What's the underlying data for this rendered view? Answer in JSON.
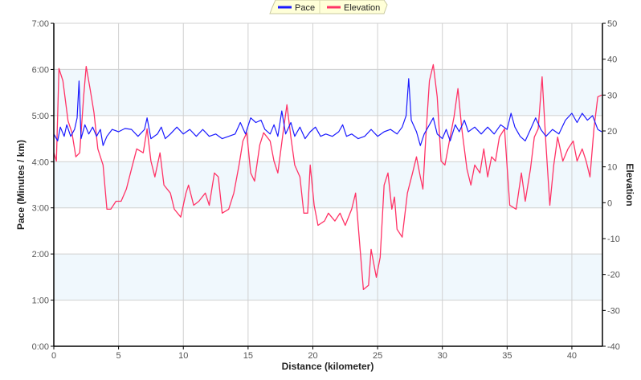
{
  "chart_data": {
    "type": "line",
    "legend": {
      "placement": "top-center",
      "items": [
        "Pace",
        "Elevation"
      ]
    },
    "xlabel": "Distance (kilometer)",
    "ylabel_left": "Pace (Minutes / km)",
    "ylabel_right": "Elevation",
    "xlim": [
      0,
      42.36
    ],
    "ylim_left": [
      0,
      7
    ],
    "ylim_right": [
      -40,
      50
    ],
    "x_ticks": [
      "0",
      "5",
      "10",
      "15",
      "20",
      "25",
      "30",
      "35",
      "40"
    ],
    "x_tick_values": [
      0,
      5,
      10,
      15,
      20,
      25,
      30,
      35,
      40
    ],
    "y_left_ticks": [
      "0:00",
      "1:00",
      "2:00",
      "3:00",
      "4:00",
      "5:00",
      "6:00",
      "7:00"
    ],
    "y_left_tick_values": [
      0,
      1,
      2,
      3,
      4,
      5,
      6,
      7
    ],
    "y_right_ticks": [
      "-40",
      "-30",
      "-20",
      "-10",
      "0",
      "10",
      "20",
      "30",
      "40",
      "50"
    ],
    "y_right_tick_values": [
      -40,
      -30,
      -20,
      -10,
      0,
      10,
      20,
      30,
      40,
      50
    ],
    "grid": true,
    "colors": {
      "pace": "#1a1aff",
      "elevation": "#ff3366",
      "band": "#f0f8fd",
      "legend_bg": "#ffffd8"
    },
    "series": [
      {
        "name": "Pace",
        "axis": "left",
        "unit": "min/km",
        "points": [
          [
            0,
            4.6
          ],
          [
            0.3,
            4.45
          ],
          [
            0.5,
            4.75
          ],
          [
            0.8,
            4.55
          ],
          [
            1.0,
            4.8
          ],
          [
            1.3,
            4.55
          ],
          [
            1.6,
            4.7
          ],
          [
            1.8,
            4.95
          ],
          [
            1.95,
            5.75
          ],
          [
            2.1,
            4.5
          ],
          [
            2.4,
            4.8
          ],
          [
            2.7,
            4.6
          ],
          [
            3.0,
            4.75
          ],
          [
            3.3,
            4.55
          ],
          [
            3.6,
            4.7
          ],
          [
            3.8,
            4.35
          ],
          [
            4.1,
            4.55
          ],
          [
            4.5,
            4.7
          ],
          [
            5.0,
            4.65
          ],
          [
            5.5,
            4.72
          ],
          [
            6.0,
            4.7
          ],
          [
            6.5,
            4.55
          ],
          [
            7.0,
            4.7
          ],
          [
            7.2,
            4.95
          ],
          [
            7.5,
            4.5
          ],
          [
            8.0,
            4.6
          ],
          [
            8.3,
            4.75
          ],
          [
            8.6,
            4.5
          ],
          [
            9.0,
            4.6
          ],
          [
            9.5,
            4.75
          ],
          [
            10.0,
            4.6
          ],
          [
            10.5,
            4.7
          ],
          [
            11.0,
            4.55
          ],
          [
            11.5,
            4.7
          ],
          [
            12.0,
            4.55
          ],
          [
            12.5,
            4.6
          ],
          [
            13.0,
            4.5
          ],
          [
            13.5,
            4.55
          ],
          [
            14.0,
            4.6
          ],
          [
            14.4,
            4.85
          ],
          [
            14.8,
            4.6
          ],
          [
            15.2,
            4.95
          ],
          [
            15.6,
            4.85
          ],
          [
            16.0,
            4.9
          ],
          [
            16.3,
            4.7
          ],
          [
            16.7,
            4.6
          ],
          [
            17.0,
            4.8
          ],
          [
            17.3,
            4.55
          ],
          [
            17.6,
            5.1
          ],
          [
            17.9,
            4.6
          ],
          [
            18.3,
            4.85
          ],
          [
            18.6,
            4.55
          ],
          [
            19.0,
            4.75
          ],
          [
            19.4,
            4.5
          ],
          [
            19.8,
            4.65
          ],
          [
            20.2,
            4.75
          ],
          [
            20.6,
            4.55
          ],
          [
            21.0,
            4.6
          ],
          [
            21.5,
            4.55
          ],
          [
            22.0,
            4.65
          ],
          [
            22.3,
            4.8
          ],
          [
            22.6,
            4.55
          ],
          [
            23.0,
            4.6
          ],
          [
            23.5,
            4.5
          ],
          [
            24.0,
            4.55
          ],
          [
            24.5,
            4.7
          ],
          [
            25.0,
            4.55
          ],
          [
            25.5,
            4.65
          ],
          [
            26.0,
            4.7
          ],
          [
            26.5,
            4.6
          ],
          [
            26.9,
            4.75
          ],
          [
            27.2,
            5.0
          ],
          [
            27.4,
            5.8
          ],
          [
            27.6,
            4.9
          ],
          [
            28.0,
            4.65
          ],
          [
            28.3,
            4.35
          ],
          [
            28.6,
            4.6
          ],
          [
            29.0,
            4.8
          ],
          [
            29.3,
            4.95
          ],
          [
            29.6,
            4.6
          ],
          [
            30.0,
            4.5
          ],
          [
            30.3,
            4.7
          ],
          [
            30.6,
            4.45
          ],
          [
            31.0,
            4.8
          ],
          [
            31.3,
            4.65
          ],
          [
            31.7,
            4.9
          ],
          [
            32.0,
            4.65
          ],
          [
            32.5,
            4.75
          ],
          [
            33.0,
            4.6
          ],
          [
            33.5,
            4.75
          ],
          [
            34.0,
            4.6
          ],
          [
            34.5,
            4.8
          ],
          [
            35.0,
            4.7
          ],
          [
            35.3,
            5.05
          ],
          [
            35.6,
            4.75
          ],
          [
            36.0,
            4.55
          ],
          [
            36.4,
            4.45
          ],
          [
            36.8,
            4.7
          ],
          [
            37.2,
            4.95
          ],
          [
            37.6,
            4.7
          ],
          [
            38.0,
            4.55
          ],
          [
            38.5,
            4.7
          ],
          [
            39.0,
            4.6
          ],
          [
            39.5,
            4.9
          ],
          [
            40.0,
            5.05
          ],
          [
            40.4,
            4.85
          ],
          [
            40.8,
            5.05
          ],
          [
            41.2,
            4.9
          ],
          [
            41.6,
            5.0
          ],
          [
            42.0,
            4.7
          ],
          [
            42.3,
            4.65
          ]
        ]
      },
      {
        "name": "Elevation",
        "axis": "right",
        "unit": "m",
        "points": [
          [
            0,
            13.9
          ],
          [
            0.2,
            11.6
          ],
          [
            0.4,
            37.4
          ],
          [
            0.7,
            34
          ],
          [
            1.1,
            22.8
          ],
          [
            1.4,
            19.5
          ],
          [
            1.7,
            12.8
          ],
          [
            2.0,
            13.9
          ],
          [
            2.3,
            29.5
          ],
          [
            2.5,
            38
          ],
          [
            2.8,
            31.8
          ],
          [
            3.1,
            25.1
          ],
          [
            3.4,
            15
          ],
          [
            3.8,
            10.5
          ],
          [
            4.1,
            -1.8
          ],
          [
            4.4,
            -1.8
          ],
          [
            4.8,
            0.4
          ],
          [
            5.2,
            0.4
          ],
          [
            5.6,
            3.8
          ],
          [
            6.0,
            9.4
          ],
          [
            6.4,
            15
          ],
          [
            6.9,
            13.9
          ],
          [
            7.2,
            20.6
          ],
          [
            7.5,
            11.6
          ],
          [
            7.8,
            7.2
          ],
          [
            8.2,
            13.9
          ],
          [
            8.5,
            4.9
          ],
          [
            9.0,
            2.7
          ],
          [
            9.3,
            -1.8
          ],
          [
            9.8,
            -4
          ],
          [
            10.2,
            2.7
          ],
          [
            10.4,
            4.9
          ],
          [
            10.8,
            -0.7
          ],
          [
            11.2,
            0.4
          ],
          [
            11.7,
            2.7
          ],
          [
            12.0,
            -0.7
          ],
          [
            12.4,
            8.3
          ],
          [
            12.7,
            7.2
          ],
          [
            13.0,
            -2.9
          ],
          [
            13.5,
            -1.8
          ],
          [
            13.9,
            2.7
          ],
          [
            14.3,
            10.5
          ],
          [
            14.6,
            17.2
          ],
          [
            14.9,
            19.5
          ],
          [
            15.2,
            8.3
          ],
          [
            15.5,
            6
          ],
          [
            15.9,
            16.1
          ],
          [
            16.2,
            19.5
          ],
          [
            16.7,
            17.2
          ],
          [
            17.0,
            11.6
          ],
          [
            17.3,
            8.3
          ],
          [
            17.7,
            19.5
          ],
          [
            18.0,
            27.3
          ],
          [
            18.3,
            18.3
          ],
          [
            18.6,
            10.5
          ],
          [
            19.0,
            7.2
          ],
          [
            19.3,
            -2.9
          ],
          [
            19.6,
            -2.9
          ],
          [
            19.8,
            10.5
          ],
          [
            20.1,
            -0.7
          ],
          [
            20.4,
            -6.3
          ],
          [
            20.9,
            -5.1
          ],
          [
            21.2,
            -2.9
          ],
          [
            21.7,
            -5.1
          ],
          [
            22.1,
            -2.9
          ],
          [
            22.5,
            -6.3
          ],
          [
            23.0,
            -1.8
          ],
          [
            23.3,
            2.7
          ],
          [
            23.6,
            -10.7
          ],
          [
            23.9,
            -24.2
          ],
          [
            24.3,
            -23
          ],
          [
            24.5,
            -13
          ],
          [
            24.9,
            -20.8
          ],
          [
            25.2,
            -15.2
          ],
          [
            25.5,
            4.9
          ],
          [
            25.8,
            8.3
          ],
          [
            26.1,
            -1.8
          ],
          [
            26.3,
            1.6
          ],
          [
            26.5,
            -7.4
          ],
          [
            26.9,
            -9.6
          ],
          [
            27.3,
            2.7
          ],
          [
            27.7,
            8.3
          ],
          [
            28.0,
            12.8
          ],
          [
            28.3,
            7.2
          ],
          [
            28.5,
            3.8
          ],
          [
            28.7,
            17.2
          ],
          [
            29.0,
            34
          ],
          [
            29.3,
            38.5
          ],
          [
            29.6,
            29.5
          ],
          [
            29.9,
            11.6
          ],
          [
            30.2,
            10.5
          ],
          [
            30.6,
            18.3
          ],
          [
            30.9,
            23.9
          ],
          [
            31.2,
            31.8
          ],
          [
            31.5,
            20.6
          ],
          [
            31.9,
            9.4
          ],
          [
            32.2,
            4.9
          ],
          [
            32.5,
            10.5
          ],
          [
            32.9,
            8.3
          ],
          [
            33.2,
            15
          ],
          [
            33.5,
            7.2
          ],
          [
            33.8,
            12.8
          ],
          [
            34.1,
            11.6
          ],
          [
            34.4,
            18.3
          ],
          [
            34.8,
            20.6
          ],
          [
            35.2,
            -0.7
          ],
          [
            35.7,
            -1.8
          ],
          [
            36.1,
            8.3
          ],
          [
            36.4,
            0.4
          ],
          [
            36.8,
            9.4
          ],
          [
            37.1,
            18.3
          ],
          [
            37.4,
            20.6
          ],
          [
            37.7,
            35.1
          ],
          [
            38.0,
            16.1
          ],
          [
            38.3,
            -0.7
          ],
          [
            38.6,
            10.5
          ],
          [
            38.9,
            18.3
          ],
          [
            39.3,
            11.6
          ],
          [
            39.7,
            15
          ],
          [
            40.1,
            17.2
          ],
          [
            40.4,
            11.6
          ],
          [
            40.8,
            15
          ],
          [
            41.1,
            11.6
          ],
          [
            41.4,
            7.2
          ],
          [
            41.7,
            20.6
          ],
          [
            42.0,
            29.5
          ],
          [
            42.3,
            30
          ]
        ]
      }
    ]
  }
}
